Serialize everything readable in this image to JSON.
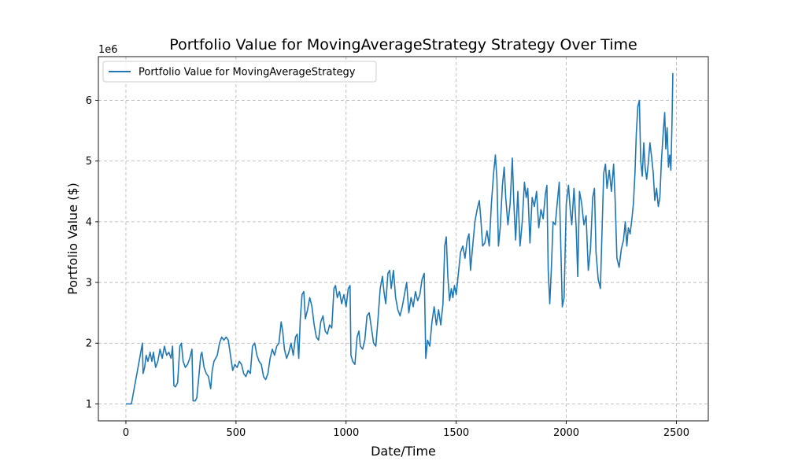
{
  "chart_data": {
    "type": "line",
    "title": "Portfolio Value for MovingAverageStrategy Strategy Over Time",
    "xlabel": "Date/Time",
    "ylabel": "Portfolio Value ($)",
    "y_offset_label": "1e6",
    "xlim": [
      -125,
      2645
    ],
    "ylim": [
      0.72,
      6.72
    ],
    "xticks": [
      0,
      500,
      1000,
      1500,
      2000,
      2500
    ],
    "yticks": [
      1,
      2,
      3,
      4,
      5,
      6
    ],
    "grid": true,
    "legend_position": "top-left",
    "series": [
      {
        "name": "Portfolio Value for MovingAverageStrategy",
        "color": "#1f77b4",
        "points": [
          [
            0,
            1.0
          ],
          [
            20,
            1.0
          ],
          [
            25,
            1.0
          ],
          [
            40,
            1.3
          ],
          [
            55,
            1.6
          ],
          [
            70,
            1.9
          ],
          [
            75,
            2.0
          ],
          [
            78,
            1.5
          ],
          [
            85,
            1.6
          ],
          [
            92,
            1.8
          ],
          [
            100,
            1.7
          ],
          [
            110,
            1.85
          ],
          [
            118,
            1.7
          ],
          [
            125,
            1.85
          ],
          [
            135,
            1.6
          ],
          [
            145,
            1.7
          ],
          [
            155,
            1.9
          ],
          [
            165,
            1.75
          ],
          [
            175,
            1.95
          ],
          [
            185,
            1.8
          ],
          [
            195,
            1.85
          ],
          [
            205,
            1.75
          ],
          [
            212,
            1.95
          ],
          [
            218,
            1.3
          ],
          [
            225,
            1.28
          ],
          [
            235,
            1.35
          ],
          [
            245,
            1.95
          ],
          [
            252,
            2.0
          ],
          [
            260,
            1.7
          ],
          [
            270,
            1.6
          ],
          [
            280,
            1.65
          ],
          [
            290,
            1.75
          ],
          [
            300,
            1.9
          ],
          [
            305,
            1.05
          ],
          [
            315,
            1.05
          ],
          [
            322,
            1.1
          ],
          [
            330,
            1.4
          ],
          [
            340,
            1.8
          ],
          [
            345,
            1.85
          ],
          [
            355,
            1.6
          ],
          [
            365,
            1.5
          ],
          [
            375,
            1.45
          ],
          [
            385,
            1.25
          ],
          [
            392,
            1.55
          ],
          [
            400,
            1.7
          ],
          [
            415,
            1.8
          ],
          [
            425,
            2.0
          ],
          [
            435,
            2.1
          ],
          [
            445,
            2.05
          ],
          [
            455,
            2.1
          ],
          [
            465,
            2.05
          ],
          [
            475,
            1.8
          ],
          [
            485,
            1.55
          ],
          [
            495,
            1.65
          ],
          [
            505,
            1.6
          ],
          [
            515,
            1.7
          ],
          [
            525,
            1.65
          ],
          [
            535,
            1.5
          ],
          [
            545,
            1.45
          ],
          [
            555,
            1.55
          ],
          [
            565,
            1.5
          ],
          [
            575,
            1.95
          ],
          [
            585,
            2.0
          ],
          [
            595,
            1.8
          ],
          [
            605,
            1.7
          ],
          [
            615,
            1.65
          ],
          [
            625,
            1.45
          ],
          [
            635,
            1.4
          ],
          [
            645,
            1.5
          ],
          [
            655,
            1.75
          ],
          [
            665,
            1.9
          ],
          [
            675,
            1.8
          ],
          [
            685,
            1.95
          ],
          [
            695,
            2.0
          ],
          [
            705,
            2.35
          ],
          [
            712,
            2.2
          ],
          [
            720,
            1.9
          ],
          [
            730,
            1.75
          ],
          [
            740,
            1.85
          ],
          [
            750,
            2.0
          ],
          [
            760,
            1.8
          ],
          [
            770,
            2.1
          ],
          [
            778,
            2.15
          ],
          [
            785,
            1.75
          ],
          [
            792,
            2.4
          ],
          [
            800,
            2.8
          ],
          [
            808,
            2.85
          ],
          [
            815,
            2.4
          ],
          [
            825,
            2.55
          ],
          [
            835,
            2.75
          ],
          [
            845,
            2.6
          ],
          [
            855,
            2.3
          ],
          [
            865,
            2.1
          ],
          [
            875,
            2.05
          ],
          [
            885,
            2.35
          ],
          [
            895,
            2.45
          ],
          [
            905,
            2.2
          ],
          [
            915,
            2.15
          ],
          [
            925,
            2.3
          ],
          [
            935,
            2.25
          ],
          [
            945,
            2.9
          ],
          [
            952,
            2.95
          ],
          [
            960,
            2.75
          ],
          [
            970,
            2.85
          ],
          [
            980,
            2.65
          ],
          [
            990,
            2.8
          ],
          [
            1000,
            2.6
          ],
          [
            1010,
            2.9
          ],
          [
            1018,
            2.95
          ],
          [
            1022,
            1.8
          ],
          [
            1030,
            1.7
          ],
          [
            1040,
            1.65
          ],
          [
            1050,
            2.1
          ],
          [
            1058,
            2.2
          ],
          [
            1065,
            1.95
          ],
          [
            1075,
            1.9
          ],
          [
            1085,
            2.05
          ],
          [
            1095,
            2.45
          ],
          [
            1105,
            2.5
          ],
          [
            1115,
            2.25
          ],
          [
            1125,
            2.0
          ],
          [
            1135,
            1.95
          ],
          [
            1145,
            2.4
          ],
          [
            1155,
            2.9
          ],
          [
            1165,
            3.1
          ],
          [
            1172,
            2.85
          ],
          [
            1180,
            2.65
          ],
          [
            1190,
            3.15
          ],
          [
            1198,
            3.2
          ],
          [
            1205,
            2.9
          ],
          [
            1215,
            3.2
          ],
          [
            1225,
            2.75
          ],
          [
            1235,
            2.55
          ],
          [
            1245,
            2.45
          ],
          [
            1255,
            2.6
          ],
          [
            1265,
            2.8
          ],
          [
            1275,
            3.0
          ],
          [
            1285,
            2.5
          ],
          [
            1295,
            2.75
          ],
          [
            1305,
            2.6
          ],
          [
            1315,
            2.85
          ],
          [
            1325,
            2.7
          ],
          [
            1335,
            2.8
          ],
          [
            1345,
            3.05
          ],
          [
            1355,
            3.15
          ],
          [
            1362,
            1.75
          ],
          [
            1370,
            2.05
          ],
          [
            1380,
            1.95
          ],
          [
            1390,
            2.35
          ],
          [
            1400,
            2.6
          ],
          [
            1410,
            2.3
          ],
          [
            1420,
            2.55
          ],
          [
            1430,
            2.3
          ],
          [
            1440,
            2.65
          ],
          [
            1448,
            3.6
          ],
          [
            1455,
            3.75
          ],
          [
            1462,
            3.1
          ],
          [
            1470,
            2.7
          ],
          [
            1478,
            2.9
          ],
          [
            1485,
            2.75
          ],
          [
            1492,
            2.95
          ],
          [
            1500,
            2.8
          ],
          [
            1510,
            3.15
          ],
          [
            1520,
            3.5
          ],
          [
            1530,
            3.6
          ],
          [
            1540,
            3.4
          ],
          [
            1550,
            3.7
          ],
          [
            1558,
            3.8
          ],
          [
            1565,
            3.2
          ],
          [
            1575,
            3.6
          ],
          [
            1585,
            4.0
          ],
          [
            1595,
            4.2
          ],
          [
            1605,
            4.35
          ],
          [
            1612,
            4.05
          ],
          [
            1620,
            3.6
          ],
          [
            1630,
            3.65
          ],
          [
            1640,
            3.85
          ],
          [
            1650,
            3.6
          ],
          [
            1660,
            4.3
          ],
          [
            1670,
            4.8
          ],
          [
            1678,
            5.1
          ],
          [
            1685,
            4.7
          ],
          [
            1692,
            3.6
          ],
          [
            1700,
            3.9
          ],
          [
            1710,
            4.6
          ],
          [
            1718,
            4.9
          ],
          [
            1725,
            4.4
          ],
          [
            1735,
            3.95
          ],
          [
            1745,
            4.3
          ],
          [
            1755,
            5.05
          ],
          [
            1762,
            4.3
          ],
          [
            1770,
            3.7
          ],
          [
            1780,
            4.5
          ],
          [
            1790,
            3.6
          ],
          [
            1800,
            4.0
          ],
          [
            1810,
            4.65
          ],
          [
            1818,
            4.4
          ],
          [
            1825,
            4.55
          ],
          [
            1835,
            3.65
          ],
          [
            1845,
            4.4
          ],
          [
            1855,
            4.25
          ],
          [
            1865,
            4.5
          ],
          [
            1875,
            3.9
          ],
          [
            1885,
            4.2
          ],
          [
            1895,
            4.05
          ],
          [
            1905,
            4.45
          ],
          [
            1912,
            4.6
          ],
          [
            1918,
            3.2
          ],
          [
            1925,
            2.65
          ],
          [
            1932,
            3.2
          ],
          [
            1940,
            4.0
          ],
          [
            1950,
            3.95
          ],
          [
            1960,
            4.35
          ],
          [
            1968,
            4.65
          ],
          [
            1975,
            3.6
          ],
          [
            1982,
            2.6
          ],
          [
            1990,
            2.75
          ],
          [
            2000,
            4.3
          ],
          [
            2010,
            4.6
          ],
          [
            2018,
            4.2
          ],
          [
            2025,
            3.95
          ],
          [
            2035,
            4.55
          ],
          [
            2045,
            3.9
          ],
          [
            2052,
            3.1
          ],
          [
            2060,
            4.5
          ],
          [
            2070,
            4.3
          ],
          [
            2080,
            3.95
          ],
          [
            2090,
            4.1
          ],
          [
            2100,
            3.2
          ],
          [
            2110,
            3.55
          ],
          [
            2120,
            4.4
          ],
          [
            2128,
            4.55
          ],
          [
            2135,
            3.5
          ],
          [
            2145,
            3.05
          ],
          [
            2155,
            2.9
          ],
          [
            2162,
            3.8
          ],
          [
            2170,
            4.8
          ],
          [
            2178,
            4.95
          ],
          [
            2185,
            4.55
          ],
          [
            2195,
            4.85
          ],
          [
            2205,
            4.5
          ],
          [
            2215,
            4.95
          ],
          [
            2222,
            4.35
          ],
          [
            2230,
            3.4
          ],
          [
            2240,
            3.25
          ],
          [
            2250,
            3.55
          ],
          [
            2260,
            3.7
          ],
          [
            2268,
            4.0
          ],
          [
            2275,
            3.6
          ],
          [
            2282,
            3.9
          ],
          [
            2290,
            3.8
          ],
          [
            2298,
            4.05
          ],
          [
            2305,
            4.3
          ],
          [
            2312,
            4.8
          ],
          [
            2318,
            5.45
          ],
          [
            2325,
            5.9
          ],
          [
            2332,
            6.0
          ],
          [
            2338,
            5.0
          ],
          [
            2345,
            4.75
          ],
          [
            2352,
            5.3
          ],
          [
            2358,
            4.9
          ],
          [
            2365,
            4.7
          ],
          [
            2372,
            4.95
          ],
          [
            2380,
            5.3
          ],
          [
            2388,
            5.05
          ],
          [
            2395,
            4.8
          ],
          [
            2402,
            4.35
          ],
          [
            2410,
            4.55
          ],
          [
            2418,
            4.25
          ],
          [
            2425,
            4.4
          ],
          [
            2432,
            5.0
          ],
          [
            2440,
            5.45
          ],
          [
            2447,
            5.8
          ],
          [
            2452,
            5.2
          ],
          [
            2458,
            5.55
          ],
          [
            2464,
            4.9
          ],
          [
            2470,
            5.1
          ],
          [
            2475,
            4.85
          ],
          [
            2480,
            5.6
          ],
          [
            2484,
            6.45
          ]
        ]
      }
    ]
  }
}
